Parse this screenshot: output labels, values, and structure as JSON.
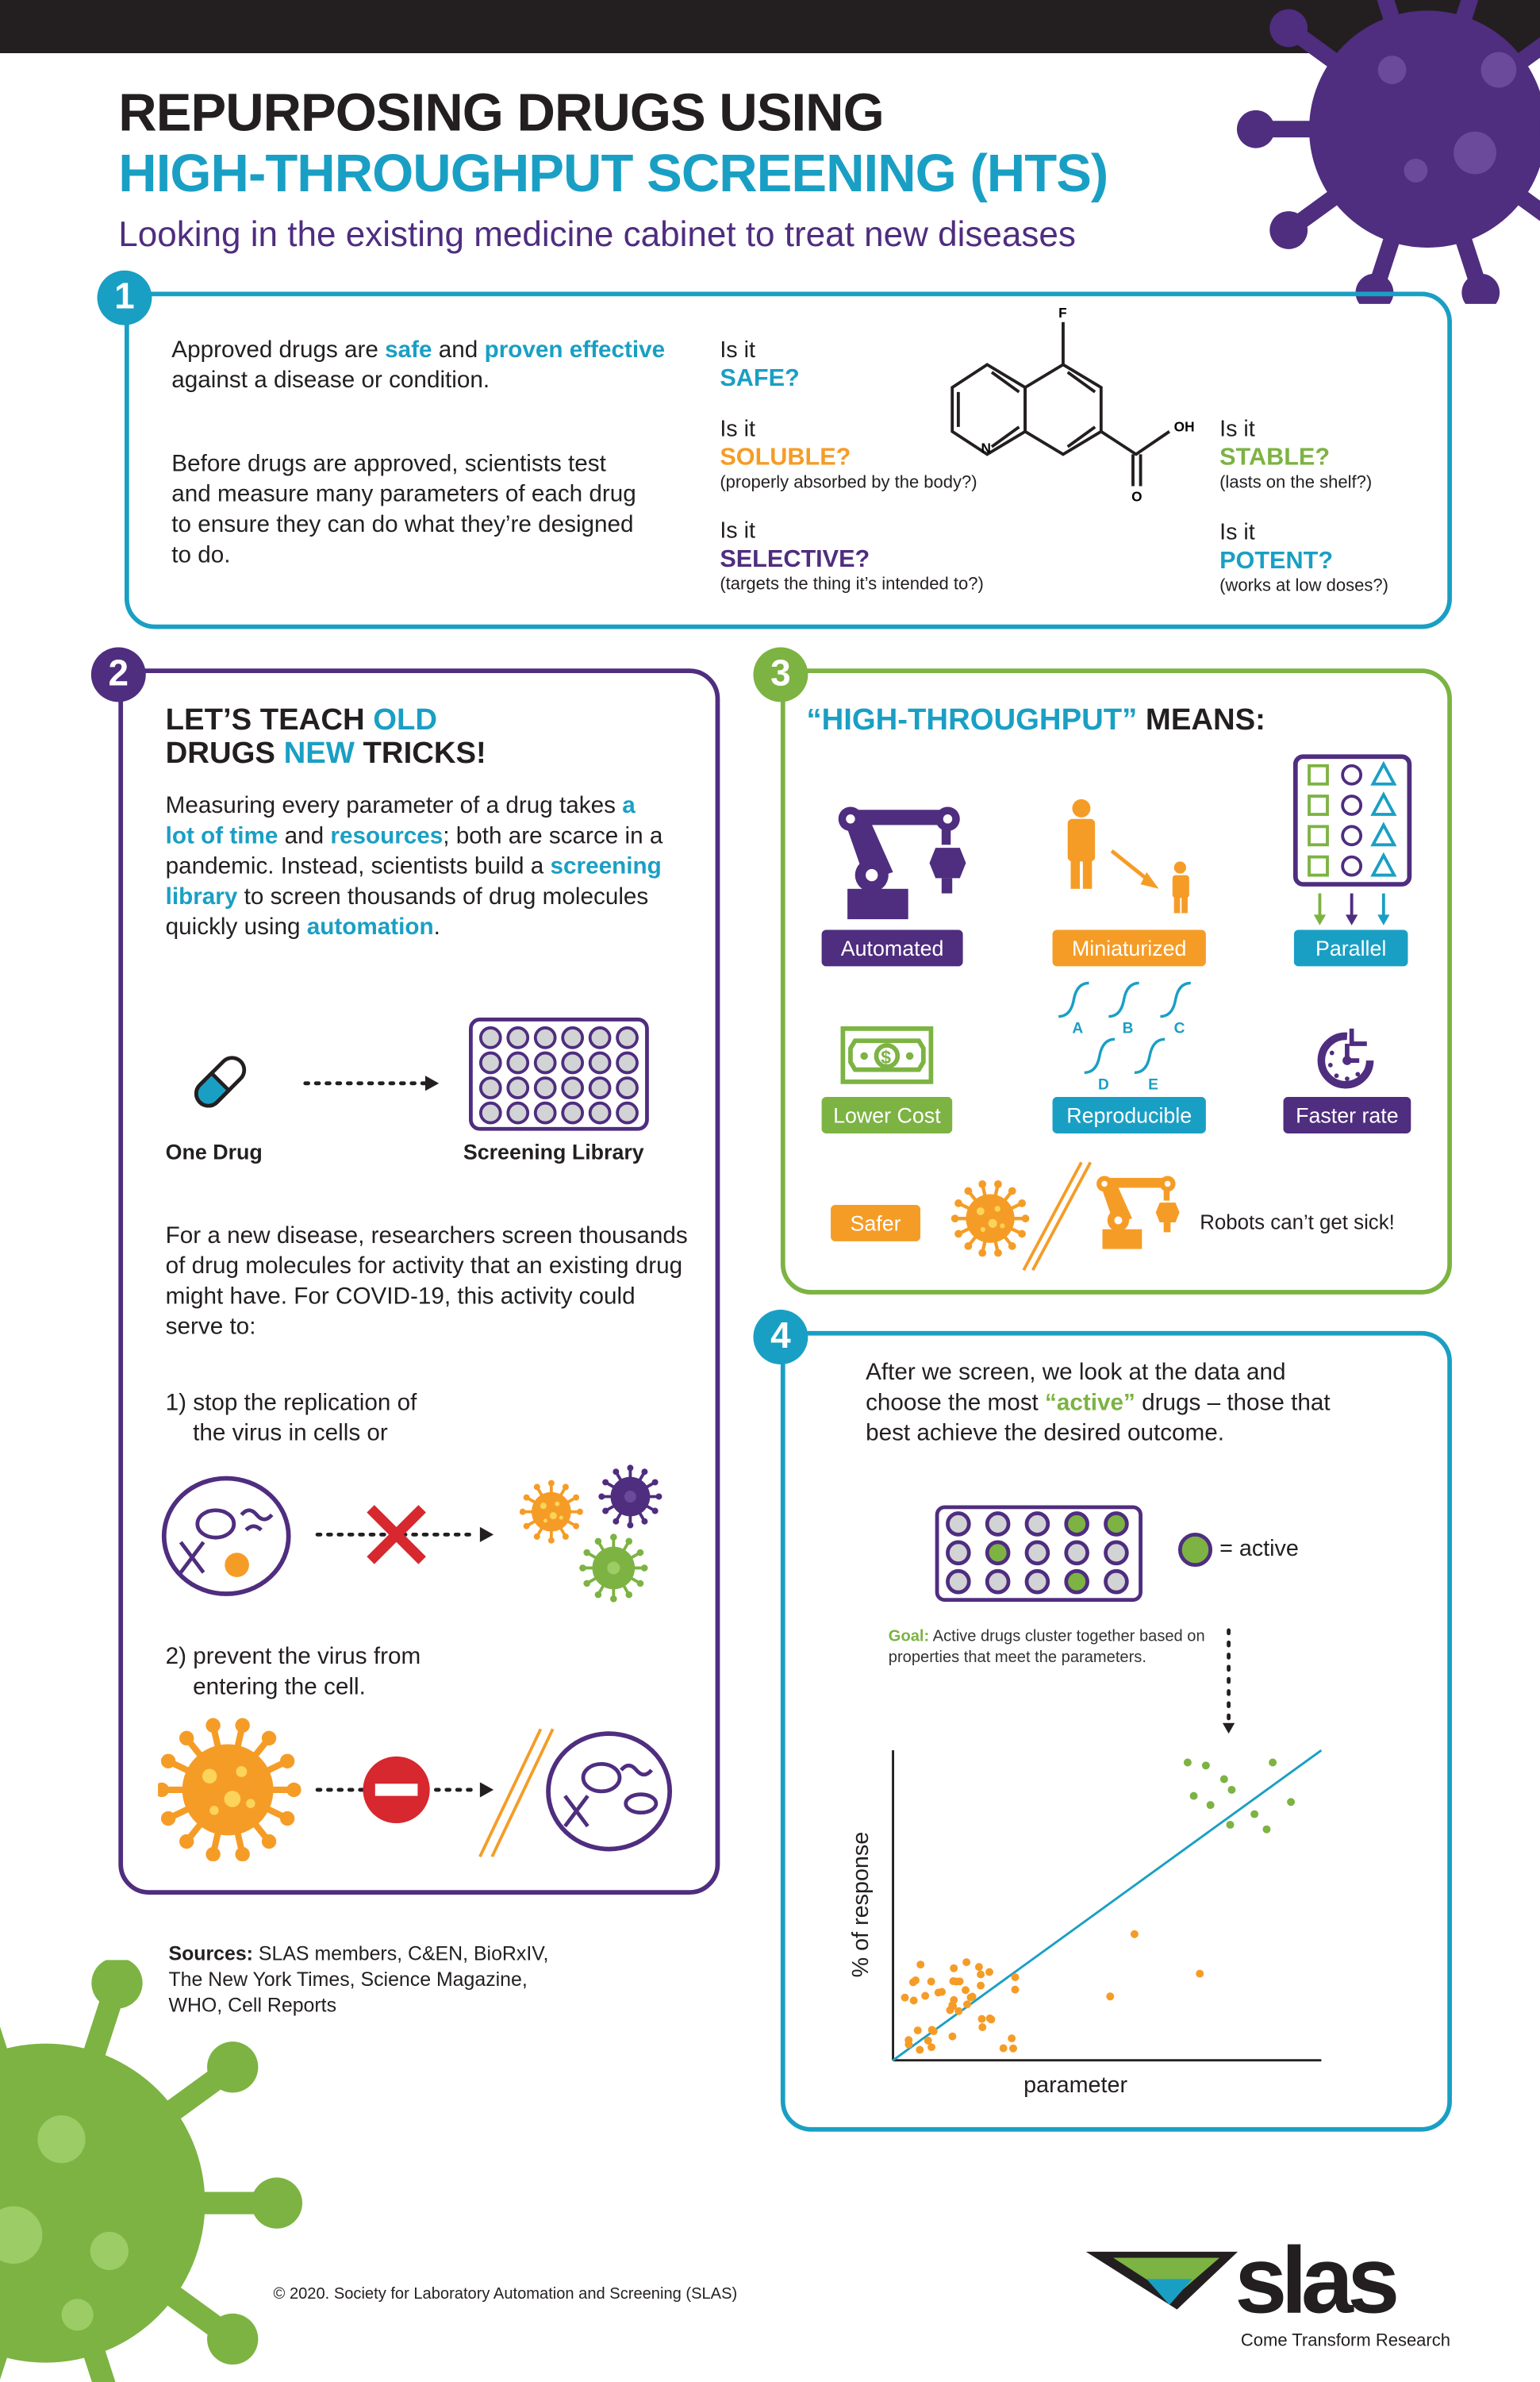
{
  "header": {
    "line1": "REPURPOSING DRUGS USING",
    "line2": "HIGH-THROUGHPUT SCREENING (HTS)",
    "subtitle": "Looking in the existing medicine cabinet to treat new diseases"
  },
  "colors": {
    "teal": "#1a9fc4",
    "purple": "#4f2d7f",
    "green": "#7cb342",
    "orange": "#f59c27",
    "red": "#d7272f",
    "dark": "#231f20"
  },
  "section1": {
    "number": "1",
    "p1": [
      "Approved drugs are ",
      "safe",
      " and ",
      "proven effective",
      " against a disease or condition."
    ],
    "p2": "Before drugs are approved, scientists test and measure many parameters of each drug to ensure they can do what they’re designed to do.",
    "questions": [
      {
        "pre": "Is it",
        "q": "SAFE?",
        "note": ""
      },
      {
        "pre": "Is it",
        "q": "SOLUBLE?",
        "note": "(properly absorbed by the body?)"
      },
      {
        "pre": "Is it",
        "q": "SELECTIVE?",
        "note": "(targets the thing it’s intended to?)"
      },
      {
        "pre": "Is it",
        "q": "STABLE?",
        "note": "(lasts on the shelf?)"
      },
      {
        "pre": "Is it",
        "q": "POTENT?",
        "note": "(works at low doses?)"
      }
    ],
    "molecule_atoms": {
      "f": "F",
      "oh": "OH",
      "n": "N",
      "o": "O"
    }
  },
  "section2": {
    "number": "2",
    "title": [
      "LET’S TEACH ",
      "OLD",
      "DRUGS ",
      "NEW",
      " TRICKS!"
    ],
    "p1": [
      "Measuring every parameter of a drug takes ",
      "a lot of time",
      " and ",
      "resources",
      "; both are scarce in a pandemic. Instead, scientists build a ",
      "screening library",
      " to screen thousands of drug molecules quickly using ",
      "automation",
      "."
    ],
    "one_drug": "One Drug",
    "screening_library": "Screening Library",
    "p2": "For a new disease, researchers screen thousands of drug molecules for activity that an existing drug might have. For COVID-19, this activity could serve to:",
    "item1": [
      "1) stop the replication of",
      "the virus in cells or"
    ],
    "item2": [
      "2) prevent the virus from",
      "entering the cell."
    ]
  },
  "section3": {
    "number": "3",
    "title": [
      "“HIGH-THROUGHPUT”",
      " MEANS:"
    ],
    "labels": {
      "automated": "Automated",
      "miniaturized": "Miniaturized",
      "parallel": "Parallel",
      "lower_cost": "Lower Cost",
      "reproducible": "Reproducible",
      "faster_rate": "Faster rate",
      "safer": "Safer"
    },
    "curve_letters": [
      "A",
      "B",
      "C",
      "D",
      "E"
    ],
    "robots_note": "Robots can’t get sick!"
  },
  "section4": {
    "number": "4",
    "p1": [
      "After we screen, we look at the data and choose the most ",
      "“active”",
      " drugs – those that best achieve the desired outcome."
    ],
    "plate_active": [
      [
        false,
        false,
        false,
        true,
        true
      ],
      [
        false,
        true,
        false,
        false,
        false
      ],
      [
        false,
        false,
        false,
        true,
        false
      ]
    ],
    "legend": "= active",
    "goal_label": "Goal:",
    "goal_text": " Active drugs cluster together based on properties that meet the parameters.",
    "ylabel": "% of response",
    "xlabel": "parameter"
  },
  "sources": {
    "label": "Sources:",
    "text": " SLAS members, C&EN, BioRxIV, The New York Times, Science Magazine, WHO, Cell Reports"
  },
  "footer": {
    "copyright": "© 2020. Society for Laboratory Automation and Screening (SLAS)",
    "logo_text": "slas",
    "tagline": "Come Transform Research"
  }
}
